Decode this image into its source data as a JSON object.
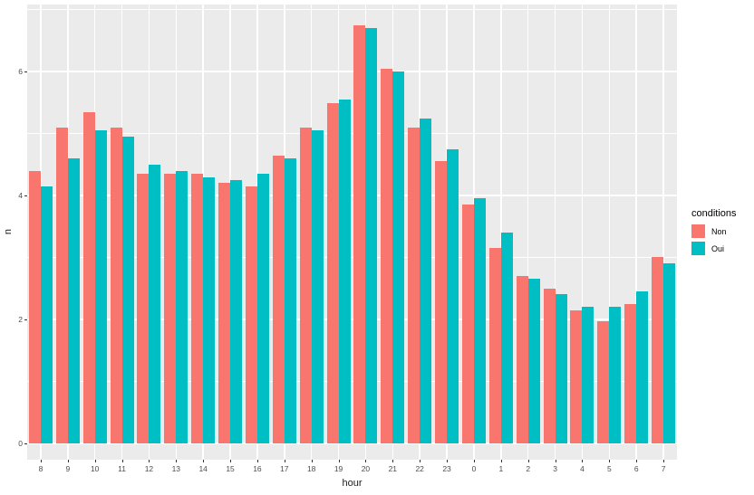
{
  "figure": {
    "background": "#FFFFFF",
    "panel_bg": "#EBEBEB",
    "grid_color": "#FFFFFF",
    "tick_label_color": "#4D4D4D",
    "axis_title_color": "#1a1a1a"
  },
  "chart_data": {
    "type": "bar",
    "title": "",
    "xlabel": "hour",
    "ylabel": "n",
    "grid": true,
    "legend_position": "right",
    "categories": [
      "8",
      "9",
      "10",
      "11",
      "12",
      "13",
      "14",
      "15",
      "16",
      "17",
      "18",
      "19",
      "20",
      "21",
      "22",
      "23",
      "0",
      "1",
      "2",
      "3",
      "4",
      "5",
      "6",
      "7"
    ],
    "series": [
      {
        "name": "Non",
        "color": "#F8766D",
        "values": [
          4.4,
          5.1,
          5.35,
          5.1,
          4.35,
          4.35,
          4.35,
          4.2,
          4.15,
          4.65,
          5.1,
          5.5,
          6.75,
          6.05,
          5.1,
          4.55,
          3.85,
          3.15,
          2.7,
          2.5,
          2.15,
          1.97,
          2.25,
          3.0
        ]
      },
      {
        "name": "Oui",
        "color": "#00BFC4",
        "values": [
          4.15,
          4.6,
          5.05,
          4.95,
          4.5,
          4.4,
          4.3,
          4.25,
          4.35,
          4.6,
          5.05,
          5.55,
          6.7,
          6.0,
          5.25,
          4.75,
          3.95,
          3.4,
          2.65,
          2.4,
          2.2,
          2.2,
          2.45,
          2.9
        ]
      }
    ],
    "ylim": [
      0,
      7.35
    ],
    "yticks": [
      0,
      2,
      4,
      6
    ],
    "yminor": [
      1,
      3,
      5,
      7
    ],
    "legend": {
      "title": "conditions",
      "entries": [
        "Non",
        "Oui"
      ]
    }
  }
}
